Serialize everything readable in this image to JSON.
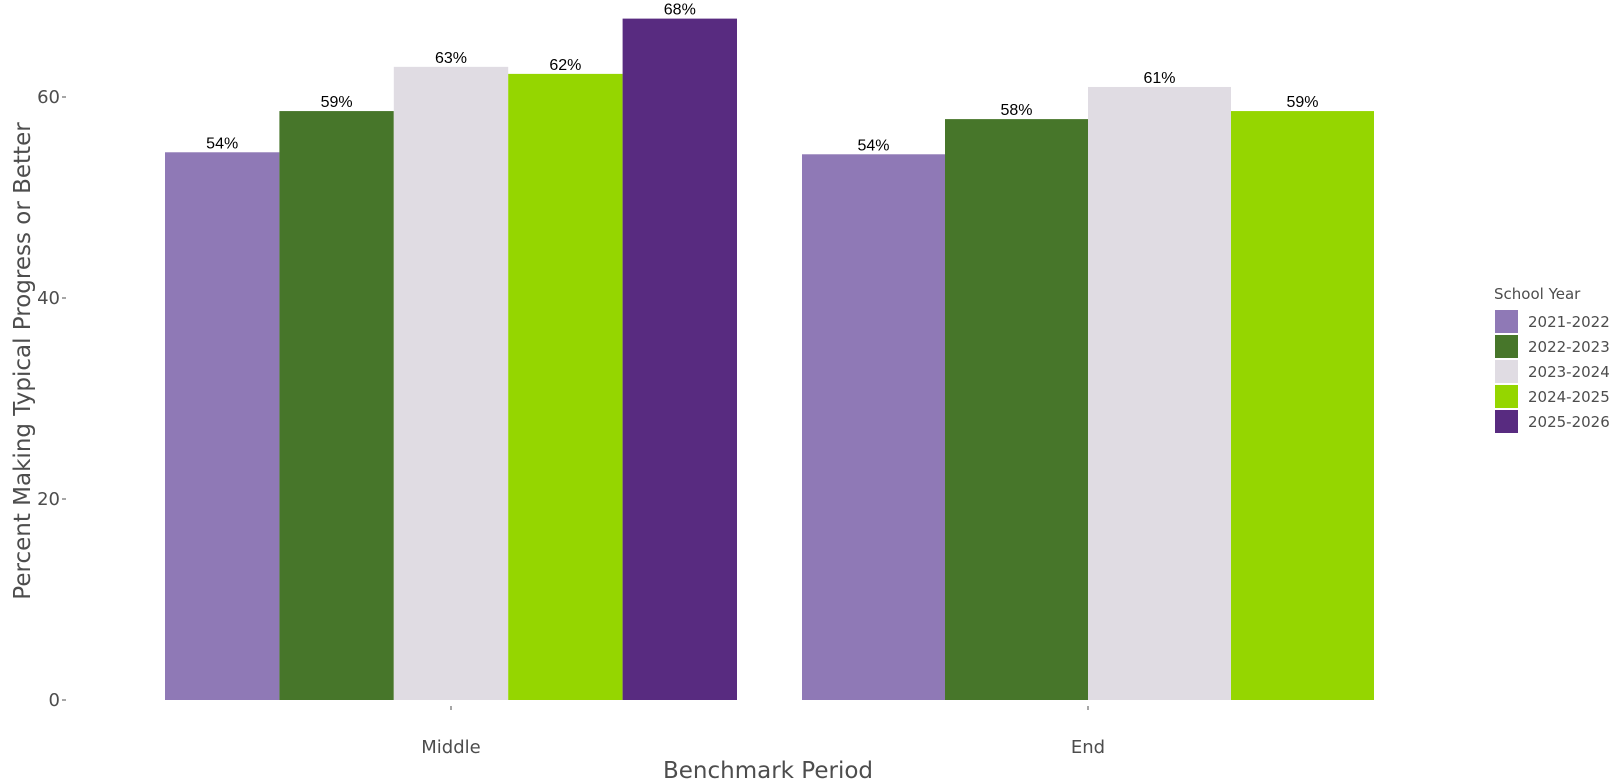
{
  "chart_data": {
    "type": "bar",
    "xlabel": "Benchmark Period",
    "ylabel": "Percent Making Typical Progress or Better",
    "ylim": [
      0,
      70
    ],
    "yticks": [
      0,
      20,
      40,
      60
    ],
    "grid": false,
    "legend_position": "right",
    "legend_title": "School Year",
    "categories": [
      "Middle",
      "End"
    ],
    "series": [
      {
        "name": "2021-2022",
        "color": "#8f79b6",
        "values": [
          54.5,
          54.3
        ],
        "labels": [
          "54%",
          "54%"
        ]
      },
      {
        "name": "2022-2023",
        "color": "#47762a",
        "values": [
          58.6,
          57.8
        ],
        "labels": [
          "59%",
          "58%"
        ]
      },
      {
        "name": "2023-2024",
        "color": "#e0dce3",
        "values": [
          63.0,
          61.0
        ],
        "labels": [
          "63%",
          "61%"
        ]
      },
      {
        "name": "2024-2025",
        "color": "#95d600",
        "values": [
          62.3,
          58.6
        ],
        "labels": [
          "62%",
          "59%"
        ]
      },
      {
        "name": "2025-2026",
        "color": "#582b80",
        "values": [
          67.8,
          null
        ],
        "labels": [
          "68%",
          null
        ]
      }
    ]
  }
}
